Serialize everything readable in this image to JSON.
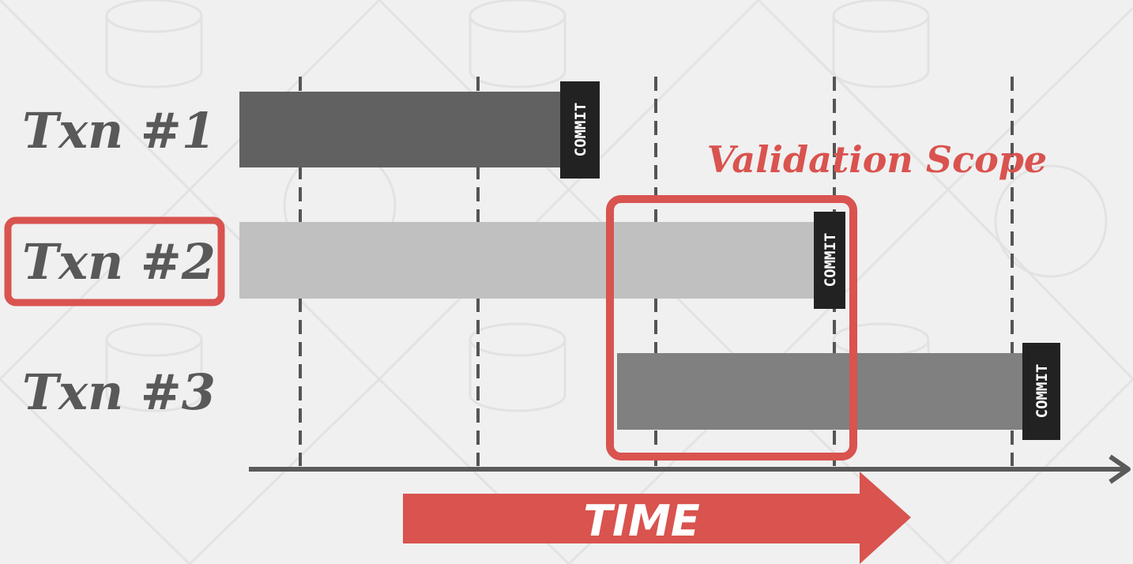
{
  "transactions": [
    {
      "label": "Txn #1",
      "commit_label": "COMMIT",
      "color": "#616161",
      "highlighted": false
    },
    {
      "label": "Txn #2",
      "commit_label": "COMMIT",
      "color": "#c0c0c0",
      "highlighted": true
    },
    {
      "label": "Txn #3",
      "commit_label": "COMMIT",
      "color": "#808080",
      "highlighted": false
    }
  ],
  "validation_scope": {
    "label": "Validation Scope",
    "color": "#d9534f"
  },
  "time_arrow": {
    "label": "TIME",
    "color": "#d9534f"
  },
  "colors": {
    "background": "#f0f0f0",
    "axis": "#5a5a5a",
    "commit_box": "#222222",
    "highlight": "#d9534f"
  }
}
